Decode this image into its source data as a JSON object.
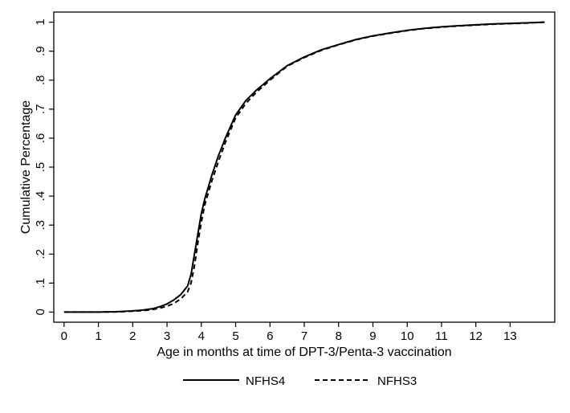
{
  "chart_data": {
    "type": "line",
    "xlabel": "Age in months at time of DPT-3/Penta-3 vaccination",
    "ylabel": "Cumulative Percentage",
    "xlim": [
      -0.3,
      14.3
    ],
    "ylim": [
      -0.035,
      1.035
    ],
    "x_ticks": [
      0,
      1,
      2,
      3,
      4,
      5,
      6,
      7,
      8,
      9,
      10,
      11,
      12,
      13
    ],
    "x_tick_labels": [
      "0",
      "1",
      "2",
      "3",
      "4",
      "5",
      "6",
      "7",
      "8",
      "9",
      "10",
      "11",
      "12",
      "13"
    ],
    "y_ticks": [
      0,
      0.1,
      0.2,
      0.3,
      0.4,
      0.5,
      0.6,
      0.7,
      0.8,
      0.9,
      1.0
    ],
    "y_tick_labels": [
      "0",
      ".1",
      ".2",
      ".3",
      ".4",
      ".5",
      ".6",
      ".7",
      ".8",
      ".9",
      "1"
    ],
    "grid": false,
    "legend_position": "bottom",
    "series": [
      {
        "name": "NFHS4",
        "style": "solid",
        "color": "#000000",
        "x": [
          0,
          1,
          1.5,
          2,
          2.3,
          2.6,
          2.8,
          3.0,
          3.2,
          3.4,
          3.6,
          3.7,
          3.8,
          3.9,
          4.0,
          4.1,
          4.2,
          4.3,
          4.5,
          4.7,
          5.0,
          5.3,
          5.6,
          6.0,
          6.5,
          7.0,
          7.5,
          8.0,
          8.5,
          9.0,
          9.5,
          10.0,
          10.5,
          11.0,
          11.5,
          12.0,
          12.5,
          13.0,
          13.5,
          14.0
        ],
        "y": [
          0,
          0,
          0.001,
          0.004,
          0.007,
          0.012,
          0.019,
          0.028,
          0.042,
          0.06,
          0.09,
          0.13,
          0.2,
          0.27,
          0.34,
          0.39,
          0.43,
          0.47,
          0.54,
          0.6,
          0.68,
          0.73,
          0.765,
          0.805,
          0.85,
          0.88,
          0.905,
          0.923,
          0.94,
          0.953,
          0.963,
          0.972,
          0.979,
          0.984,
          0.988,
          0.991,
          0.994,
          0.996,
          0.998,
          1.0
        ]
      },
      {
        "name": "NFHS3",
        "style": "dashed",
        "color": "#000000",
        "x": [
          0,
          1,
          1.5,
          2,
          2.3,
          2.6,
          2.8,
          3.0,
          3.2,
          3.4,
          3.6,
          3.7,
          3.8,
          3.9,
          4.0,
          4.1,
          4.2,
          4.3,
          4.5,
          4.7,
          5.0,
          5.3,
          5.6,
          6.0,
          6.5,
          7.0,
          7.5,
          8.0,
          8.5,
          9.0,
          9.5,
          10.0,
          10.5,
          11.0,
          11.5,
          12.0,
          12.5,
          13.0,
          13.5,
          14.0
        ],
        "y": [
          0,
          0,
          0.0005,
          0.003,
          0.005,
          0.009,
          0.014,
          0.02,
          0.03,
          0.045,
          0.07,
          0.1,
          0.16,
          0.24,
          0.31,
          0.37,
          0.41,
          0.45,
          0.52,
          0.585,
          0.67,
          0.72,
          0.758,
          0.8,
          0.848,
          0.878,
          0.903,
          0.922,
          0.939,
          0.952,
          0.962,
          0.971,
          0.978,
          0.983,
          0.987,
          0.99,
          0.993,
          0.995,
          0.997,
          1.0
        ]
      }
    ]
  }
}
